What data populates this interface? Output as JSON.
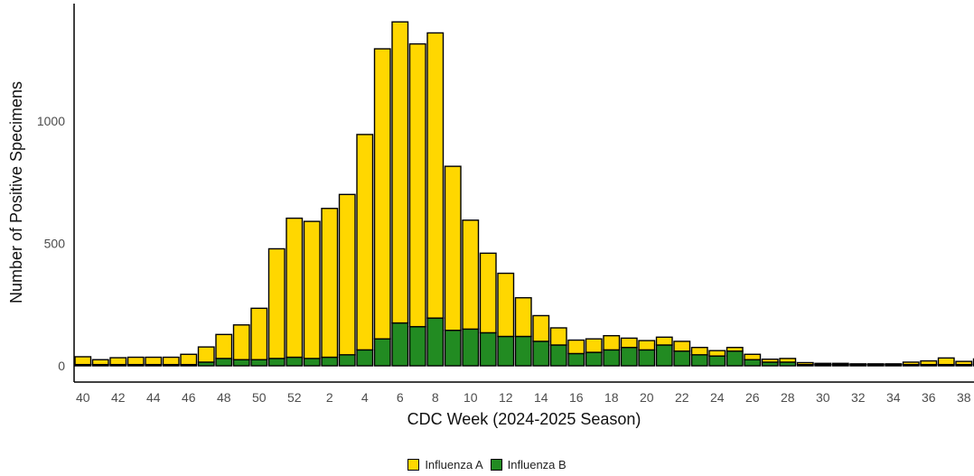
{
  "chart_data": {
    "type": "bar",
    "stacked": true,
    "title": "",
    "xlabel": "CDC Week (2024-2025 Season)",
    "ylabel": "Number of Positive Specimens",
    "ylim": [
      0,
      1400
    ],
    "yticks": [
      0,
      500,
      1000
    ],
    "xtick_labels_shown": [
      "40",
      "42",
      "44",
      "46",
      "48",
      "50",
      "52",
      "2",
      "4",
      "6",
      "8",
      "10",
      "12",
      "14",
      "16",
      "18",
      "20",
      "22",
      "24",
      "26",
      "28",
      "30",
      "32",
      "34",
      "36",
      "38"
    ],
    "grid": false,
    "legend_position": "bottom",
    "categories": [
      "40",
      "41",
      "42",
      "43",
      "44",
      "45",
      "46",
      "47",
      "48",
      "49",
      "50",
      "51",
      "52",
      "1",
      "2",
      "3",
      "4",
      "5",
      "6",
      "7",
      "8",
      "9",
      "10",
      "11",
      "12",
      "13",
      "14",
      "15",
      "16",
      "17",
      "18",
      "19",
      "20",
      "21",
      "22",
      "23",
      "24",
      "25",
      "26",
      "27",
      "28",
      "29",
      "30",
      "31",
      "32",
      "33",
      "34",
      "35",
      "36",
      "37",
      "38",
      "39"
    ],
    "series": [
      {
        "name": "Influenza B",
        "color": "#228b22",
        "values": [
          5,
          5,
          5,
          5,
          5,
          5,
          5,
          15,
          30,
          25,
          25,
          30,
          35,
          30,
          35,
          45,
          65,
          110,
          175,
          160,
          195,
          145,
          150,
          135,
          120,
          120,
          100,
          85,
          50,
          55,
          65,
          75,
          65,
          85,
          60,
          45,
          40,
          60,
          25,
          15,
          15,
          5,
          5,
          5,
          5,
          5,
          5,
          5,
          5,
          5,
          5,
          5
        ]
      },
      {
        "name": "Influenza A",
        "color": "#ffd700",
        "values": [
          32,
          20,
          28,
          30,
          30,
          30,
          42,
          62,
          98,
          142,
          210,
          448,
          568,
          560,
          608,
          655,
          880,
          1185,
          1230,
          1155,
          1165,
          670,
          445,
          325,
          258,
          158,
          105,
          70,
          55,
          55,
          58,
          38,
          38,
          32,
          40,
          30,
          22,
          15,
          22,
          12,
          15,
          8,
          5,
          5,
          3,
          3,
          3,
          10,
          15,
          27,
          13,
          23
        ]
      }
    ],
    "legend": [
      "Influenza A",
      "Influenza B"
    ]
  }
}
